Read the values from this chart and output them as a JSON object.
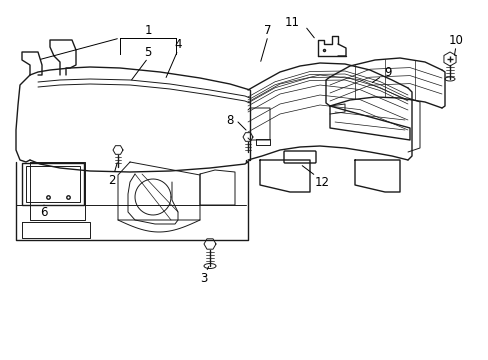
{
  "background_color": "#ffffff",
  "line_color": "#1a1a1a",
  "text_color": "#000000",
  "label_fontsize": 8.5,
  "fig_width": 4.89,
  "fig_height": 3.6,
  "dpi": 100
}
